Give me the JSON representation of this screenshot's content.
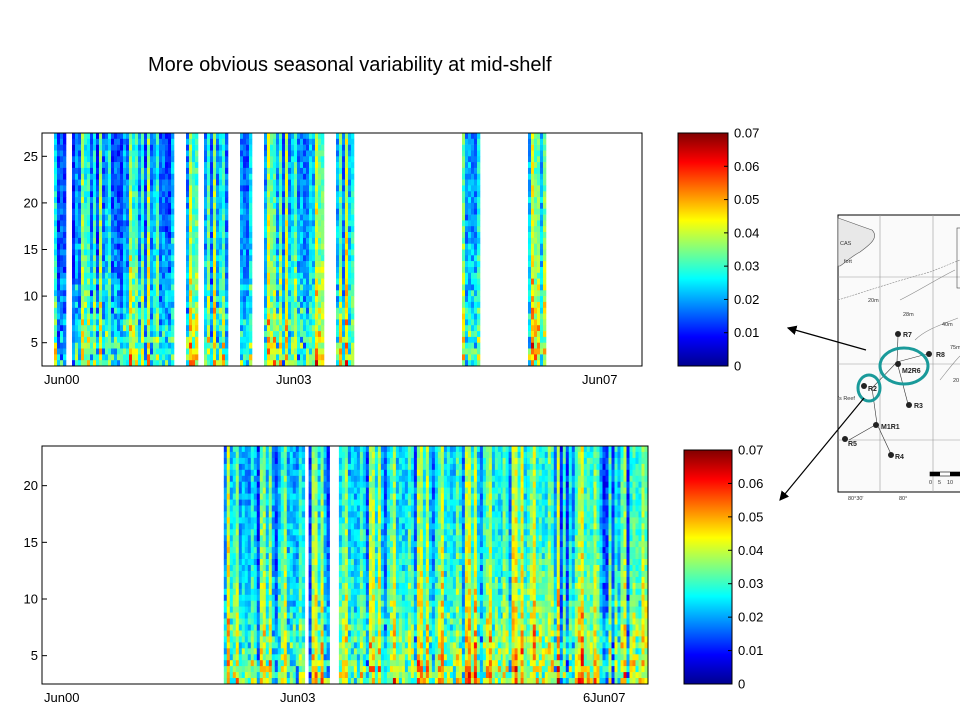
{
  "page_title": "More obvious seasonal variability at mid-shelf",
  "colors": {
    "jet": [
      "#00008f",
      "#0000ff",
      "#0080ff",
      "#00ffff",
      "#80ff80",
      "#ffff00",
      "#ff8000",
      "#ff0000",
      "#800000"
    ],
    "station_circle": "#1a9a9a",
    "arrow": "#000000"
  },
  "chart_data": [
    {
      "type": "heatmap",
      "title": "",
      "xlabel": "",
      "ylabel": "",
      "x_tick_labels": [
        "Jun00",
        "Jun03",
        "Jun07"
      ],
      "y_ticks": [
        5,
        10,
        15,
        20,
        25
      ],
      "ylim": [
        2.5,
        27.5
      ],
      "colorbar": {
        "ticks": [
          "0",
          "0.01",
          "0.02",
          "0.03",
          "0.04",
          "0.05",
          "0.06",
          "0.07"
        ],
        "range": [
          0,
          0.07
        ]
      },
      "data_columns_fraction": [
        [
          0.02,
          0.04
        ],
        [
          0.05,
          0.12
        ],
        [
          0.12,
          0.22
        ],
        [
          0.24,
          0.26
        ],
        [
          0.27,
          0.31
        ],
        [
          0.33,
          0.35
        ],
        [
          0.37,
          0.47
        ],
        [
          0.49,
          0.52
        ],
        [
          0.7,
          0.73
        ],
        [
          0.81,
          0.84
        ]
      ],
      "grid": false
    },
    {
      "type": "heatmap",
      "title": "",
      "xlabel": "",
      "ylabel": "",
      "x_tick_labels": [
        "Jun00",
        "Jun03",
        "Jun07"
      ],
      "x_tick_prefix_3": "6",
      "y_ticks": [
        5,
        10,
        15,
        20
      ],
      "ylim": [
        2.5,
        23.5
      ],
      "colorbar": {
        "ticks": [
          "0",
          "0.01",
          "0.02",
          "0.03",
          "0.04",
          "0.05",
          "0.06",
          "0.07"
        ],
        "range": [
          0,
          0.07
        ]
      },
      "data_columns_fraction": [
        [
          0.3,
          0.43
        ],
        [
          0.44,
          0.47
        ],
        [
          0.49,
          0.76
        ],
        [
          0.76,
          0.8
        ],
        [
          0.8,
          0.91
        ],
        [
          0.91,
          1.0
        ]
      ],
      "grid": false
    }
  ],
  "map": {
    "stations": [
      "R7",
      "M2R6",
      "R8",
      "R2",
      "R3",
      "M1R1",
      "R5",
      "R4"
    ],
    "place_labels": [
      "CAS",
      "fort",
      "28m",
      "40m",
      "20m",
      "75m",
      "'s Reef"
    ],
    "lon_labels": [
      "80°30'",
      "80°"
    ],
    "scale_labels": [
      "0",
      "5",
      "10"
    ],
    "misc_labels": [
      "20"
    ]
  }
}
